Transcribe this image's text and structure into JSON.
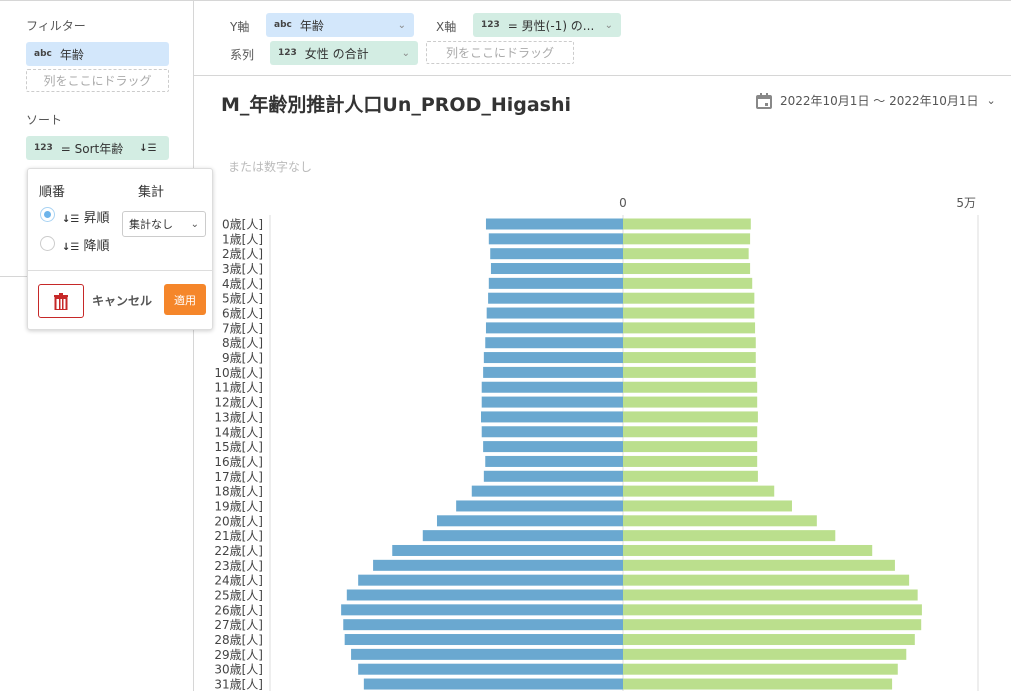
{
  "sidebar": {
    "filter_title": "フィルター",
    "filter_pill": {
      "type": "abc",
      "label": "年齢"
    },
    "filter_drop": "列をここにドラッグ",
    "sort_title": "ソート",
    "sort_pill": {
      "type": "123",
      "label": "= Sort年齢",
      "icon": "sort-ascending-icon"
    }
  },
  "topbar": {
    "y_label": "Y軸",
    "y_pill": {
      "type": "abc",
      "label": "年齢"
    },
    "x_label": "X軸",
    "x_pill": {
      "type": "123",
      "label": "= 男性(-1) の..."
    },
    "series_label": "系列",
    "series_pill": {
      "type": "123",
      "label": "女性 の合計"
    },
    "series_drop": "列をここにドラッグ"
  },
  "chart_header": {
    "title": "M_年齢別推計人口Un_PROD_Higashi",
    "date_range": "2022年10月1日 〜 2022年10月1日",
    "subtitle": "または数字なし"
  },
  "popup": {
    "order_title": "順番",
    "agg_title": "集計",
    "asc_label": "昇順",
    "desc_label": "降順",
    "selected": "asc",
    "agg_value": "集計なし",
    "cancel": "キャンセル",
    "apply": "適用",
    "apply_color": "#f5862a",
    "delete_color": "#c62828"
  },
  "chart_data": {
    "type": "bar",
    "orientation": "horizontal",
    "stacked": "diverging",
    "categories": [
      "0歳[人]",
      "1歳[人]",
      "2歳[人]",
      "3歳[人]",
      "4歳[人]",
      "5歳[人]",
      "6歳[人]",
      "7歳[人]",
      "8歳[人]",
      "9歳[人]",
      "10歳[人]",
      "11歳[人]",
      "12歳[人]",
      "13歳[人]",
      "14歳[人]",
      "15歳[人]",
      "16歳[人]",
      "17歳[人]",
      "18歳[人]",
      "19歳[人]",
      "20歳[人]",
      "21歳[人]",
      "22歳[人]",
      "23歳[人]",
      "24歳[人]",
      "25歳[人]",
      "26歳[人]",
      "27歳[人]",
      "28歳[人]",
      "29歳[人]",
      "30歳[人]",
      "31歳[人]"
    ],
    "series": [
      {
        "color": "#6aa8d0",
        "values": [
          -19300,
          -18900,
          -18700,
          -18600,
          -18900,
          -19000,
          -19200,
          -19300,
          -19400,
          -19600,
          -19700,
          -19900,
          -19900,
          -20000,
          -19900,
          -19700,
          -19400,
          -19600,
          -21300,
          -23500,
          -26200,
          -28200,
          -32500,
          -35200,
          -37300,
          -38900,
          -39700,
          -39400,
          -39200,
          -38300,
          -37300,
          -36500
        ]
      },
      {
        "color": "#bbdf8d",
        "values": [
          18000,
          17900,
          17700,
          17900,
          18200,
          18500,
          18500,
          18600,
          18700,
          18700,
          18700,
          18900,
          18900,
          19000,
          18900,
          18900,
          18900,
          19000,
          21300,
          23800,
          27300,
          29900,
          35100,
          38300,
          40300,
          41500,
          42100,
          42000,
          41100,
          39900,
          38700,
          37900
        ]
      }
    ],
    "xticks": [
      {
        "value": 0,
        "label": "0"
      },
      {
        "value": 50000,
        "label": "5万"
      }
    ],
    "xlim": [
      -50000,
      50000
    ],
    "grid": false
  }
}
